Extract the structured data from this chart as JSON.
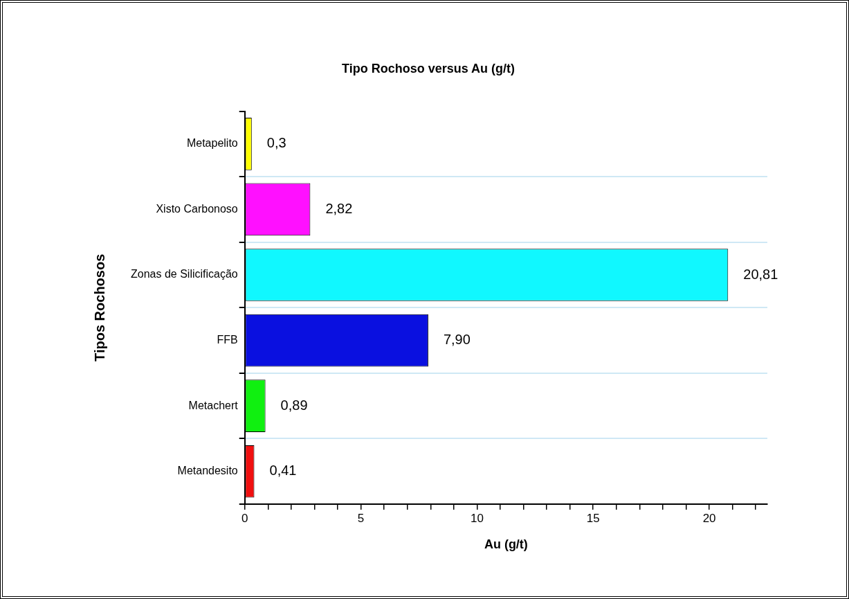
{
  "chart_data": {
    "type": "bar",
    "orientation": "horizontal",
    "title": "Tipo Rochoso versus Au (g/t)",
    "xlabel": "Au (g/t)",
    "ylabel": "Tipos Rochosos",
    "categories": [
      "Metapelito",
      "Xisto Carbonoso",
      "Zonas de Silicificação",
      "FFB",
      "Metachert",
      "Metandesito"
    ],
    "values": [
      0.3,
      2.82,
      20.81,
      7.9,
      0.89,
      0.41
    ],
    "value_labels": [
      "0,3",
      "2,82",
      "20,81",
      "7,90",
      "0,89",
      "0,41"
    ],
    "colors": [
      "#ffff00",
      "#ff10ff",
      "#10f8ff",
      "#0a10e0",
      "#10f010",
      "#f01010"
    ],
    "xlim": [
      0,
      22.5
    ],
    "xticks": [
      0,
      {
        "value": 1,
        "label": null
      },
      {
        "value": 2,
        "label": null
      },
      {
        "value": 3,
        "label": null
      },
      {
        "value": 4,
        "label": null
      },
      5,
      {
        "value": 6,
        "label": null
      },
      {
        "value": 7,
        "label": null
      },
      {
        "value": 8,
        "label": null
      },
      {
        "value": 9,
        "label": null
      },
      10,
      {
        "value": 11,
        "label": null
      },
      {
        "value": 12,
        "label": null
      },
      {
        "value": 13,
        "label": null
      },
      {
        "value": 14,
        "label": null
      },
      15,
      {
        "value": 16,
        "label": null
      },
      {
        "value": 17,
        "label": null
      },
      {
        "value": 18,
        "label": null
      },
      {
        "value": 19,
        "label": null
      },
      20,
      {
        "value": 21,
        "label": null
      },
      {
        "value": 22,
        "label": null
      }
    ],
    "grid": "y"
  }
}
